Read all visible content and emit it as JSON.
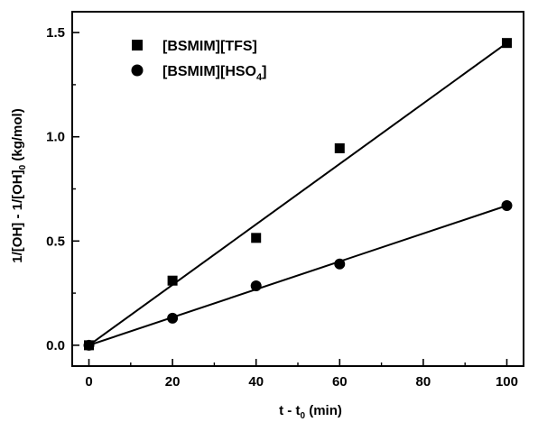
{
  "chart_data": {
    "type": "scatter",
    "title": "",
    "xlabel": "t - t",
    "xlabel_sub": "0",
    "xlabel_tail": " (min)",
    "ylabel_parts": {
      "a": "1/[OH] - 1/[OH]",
      "sub": "0",
      "b": " (kg/mol)"
    },
    "xlim": [
      -4,
      104
    ],
    "ylim": [
      -0.1,
      1.6
    ],
    "xticks": [
      0,
      20,
      40,
      60,
      80,
      100
    ],
    "xtick_labels": [
      "0",
      "20",
      "40",
      "60",
      "80",
      "100"
    ],
    "yticks": [
      0.0,
      0.5,
      1.0,
      1.5
    ],
    "ytick_labels": [
      "0.0",
      "0.5",
      "1.0",
      "1.5"
    ],
    "legend_position": "top-left",
    "series": [
      {
        "name": "[BSMIM][TFS]",
        "marker": "square",
        "color": "#000000",
        "x": [
          0,
          20,
          40,
          60,
          100
        ],
        "y": [
          0.0,
          0.31,
          0.515,
          0.945,
          1.45
        ],
        "fit": {
          "x": [
            0,
            100
          ],
          "y": [
            0.0,
            1.45
          ]
        }
      },
      {
        "name_parts": {
          "a": "[BSMIM][HSO",
          "sub": "4",
          "b": "]"
        },
        "marker": "circle",
        "color": "#000000",
        "x": [
          0,
          20,
          40,
          60,
          100
        ],
        "y": [
          0.0,
          0.13,
          0.285,
          0.39,
          0.67
        ],
        "fit": {
          "x": [
            0,
            100
          ],
          "y": [
            0.0,
            0.67
          ]
        }
      }
    ]
  }
}
